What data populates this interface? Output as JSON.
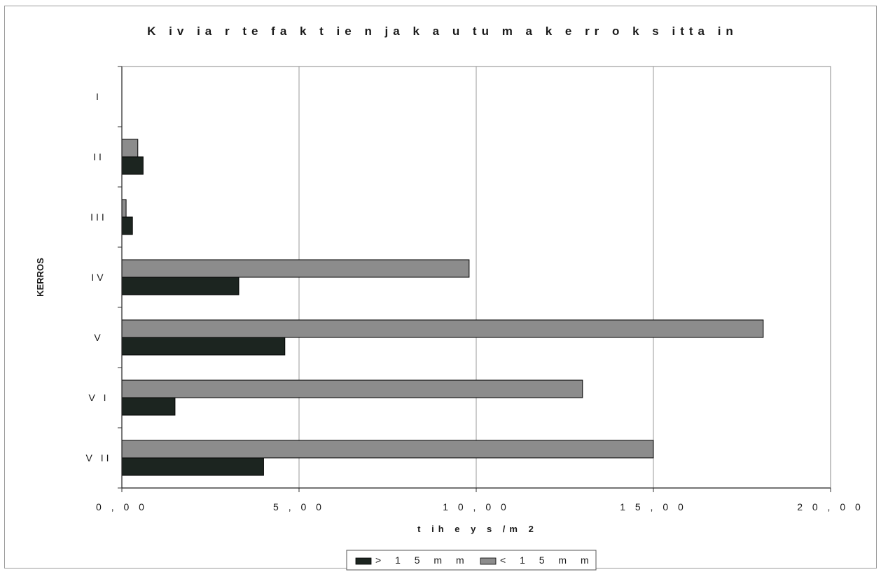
{
  "chart_data": {
    "type": "bar",
    "orientation": "horizontal",
    "title": "K iv ia r te fa k t ie n   ja k a u tu m a   k e rr o k s itta in",
    "xlabel": "t ih e y s /m  2",
    "ylabel": "KERROS",
    "xlim": [
      0,
      20
    ],
    "x_ticks": [
      0,
      5,
      10,
      15,
      20
    ],
    "x_tick_labels": [
      "0 , 0 0",
      "5 , 0 0",
      "1 0 , 0 0",
      "1 5 , 0 0",
      "2 0 , 0 0"
    ],
    "categories": [
      "I",
      "II",
      "III",
      "IV",
      "V",
      "V I",
      "V II"
    ],
    "series": [
      {
        "name": "> 1 5   m m",
        "color": "#1c2520",
        "values": [
          0,
          0.6,
          0.3,
          3.3,
          4.6,
          1.5,
          4.0
        ]
      },
      {
        "name": "< 1 5   m m",
        "color": "#8c8c8c",
        "values": [
          0,
          0.45,
          0.12,
          9.8,
          18.1,
          13.0,
          15.0
        ]
      }
    ],
    "grid": "vertical",
    "legend_position": "bottom"
  }
}
